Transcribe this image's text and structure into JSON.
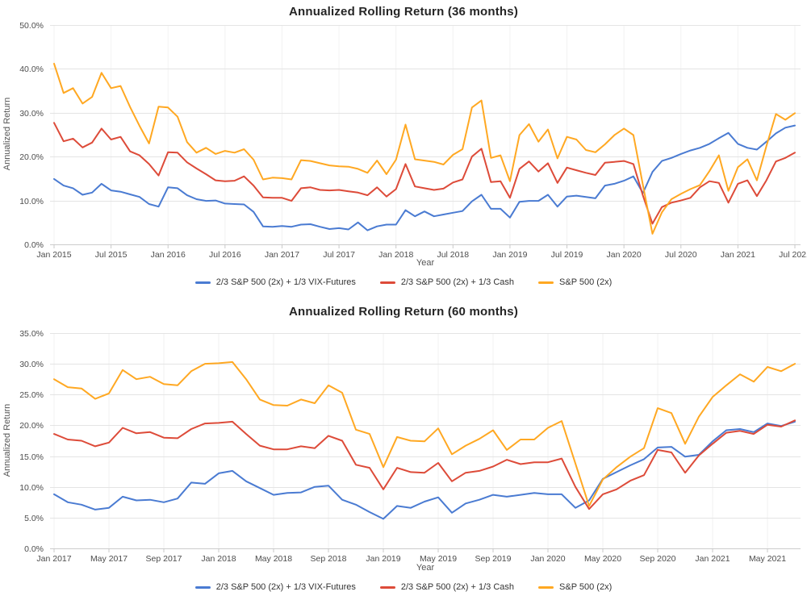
{
  "chart_data": [
    {
      "type": "line",
      "title": "Annualized Rolling Return (36 months)",
      "xlabel": "Year",
      "ylabel": "Annualized Return",
      "ylim": [
        0,
        50
      ],
      "y_step": 10,
      "grid": true,
      "legend_position": "bottom",
      "y_tick_labels": [
        "0.0%",
        "10.0%",
        "20.0%",
        "30.0%",
        "40.0%",
        "50.0%"
      ],
      "x_tick_labels": [
        "Jan 2015",
        "Jul 2015",
        "Jan 2016",
        "Jul 2016",
        "Jan 2017",
        "Jul 2017",
        "Jan 2018",
        "Jul 2018",
        "Jan 2019",
        "Jul 2019",
        "Jan 2020",
        "Jul 2020",
        "Jan 2021",
        "Jul 2021"
      ],
      "x_tick_positions": [
        0,
        6,
        12,
        18,
        24,
        30,
        36,
        42,
        48,
        54,
        60,
        66,
        72,
        78
      ],
      "x_start": "Jan 2015",
      "x_end": "Jul 2021",
      "n_points": 79,
      "series": [
        {
          "name": "2/3 S&P 500 (2x) + 1/3 VIX-Futures",
          "color": "#4a7bd2",
          "values": [
            14.9,
            13.4,
            12.8,
            11.3,
            11.8,
            13.8,
            12.3,
            12.0,
            11.4,
            10.8,
            9.2,
            8.6,
            13.0,
            12.8,
            11.2,
            10.3,
            9.9,
            10.0,
            9.3,
            9.2,
            9.1,
            7.4,
            4.1,
            4.0,
            4.2,
            4.0,
            4.5,
            4.6,
            4.0,
            3.5,
            3.7,
            3.4,
            5.0,
            3.2,
            4.1,
            4.5,
            4.5,
            7.8,
            6.4,
            7.5,
            6.4,
            6.8,
            7.2,
            7.6,
            9.8,
            11.3,
            8.1,
            8.1,
            6.1,
            9.7,
            9.9,
            9.9,
            11.3,
            8.6,
            10.9,
            11.1,
            10.8,
            10.5,
            13.4,
            13.8,
            14.5,
            15.5,
            11.7,
            16.5,
            19.0,
            19.7,
            20.6,
            21.4,
            22.0,
            22.9,
            24.2,
            25.4,
            22.9,
            22.0,
            21.6,
            23.4,
            25.3,
            26.6,
            27.1
          ]
        },
        {
          "name": "2/3 S&P 500 (2x) + 1/3 Cash",
          "color": "#dd4b39",
          "values": [
            27.7,
            23.5,
            24.1,
            22.1,
            23.2,
            26.4,
            23.9,
            24.5,
            21.2,
            20.3,
            18.3,
            15.7,
            21.0,
            20.9,
            18.7,
            17.3,
            16.0,
            14.6,
            14.4,
            14.5,
            15.5,
            13.4,
            10.7,
            10.6,
            10.6,
            9.9,
            12.8,
            13.0,
            12.4,
            12.3,
            12.4,
            12.1,
            11.8,
            11.2,
            13.0,
            10.9,
            12.6,
            18.3,
            13.2,
            12.8,
            12.4,
            12.7,
            14.1,
            14.8,
            20.0,
            21.8,
            14.2,
            14.4,
            10.6,
            17.2,
            18.9,
            16.6,
            18.5,
            14.0,
            17.5,
            16.9,
            16.3,
            15.8,
            18.6,
            18.8,
            19.0,
            18.3,
            11.1,
            4.7,
            8.5,
            9.5,
            10.0,
            10.6,
            13.0,
            14.4,
            14.0,
            9.5,
            13.8,
            14.6,
            11.0,
            14.6,
            18.9,
            19.7,
            20.9
          ]
        },
        {
          "name": "S&P 500 (2x)",
          "color": "#ffa822",
          "values": [
            41.2,
            34.5,
            35.6,
            32.1,
            33.6,
            39.1,
            35.6,
            36.1,
            31.3,
            27.0,
            23.0,
            31.4,
            31.2,
            29.1,
            23.3,
            20.9,
            22.0,
            20.6,
            21.3,
            20.9,
            21.7,
            19.3,
            14.8,
            15.2,
            15.1,
            14.8,
            19.2,
            19.0,
            18.5,
            18.0,
            17.8,
            17.7,
            17.2,
            16.3,
            19.1,
            16.0,
            19.3,
            27.3,
            19.4,
            19.1,
            18.8,
            18.2,
            20.4,
            21.7,
            31.2,
            32.8,
            19.7,
            20.3,
            14.4,
            24.9,
            27.4,
            23.4,
            26.2,
            19.6,
            24.5,
            23.9,
            21.5,
            21.0,
            22.8,
            24.9,
            26.4,
            24.9,
            13.5,
            2.4,
            7.3,
            10.3,
            11.5,
            12.6,
            13.5,
            16.7,
            20.3,
            12.2,
            17.6,
            19.4,
            14.6,
            22.4,
            29.7,
            28.4,
            29.9
          ]
        }
      ]
    },
    {
      "type": "line",
      "title": "Annualized Rolling Return (60 months)",
      "xlabel": "Year",
      "ylabel": "Annualized Return",
      "ylim": [
        0,
        35
      ],
      "y_step": 5,
      "grid": true,
      "legend_position": "bottom",
      "y_tick_labels": [
        "0.0%",
        "5.0%",
        "10.0%",
        "15.0%",
        "20.0%",
        "25.0%",
        "30.0%",
        "35.0%"
      ],
      "x_tick_labels": [
        "Jan 2017",
        "May 2017",
        "Sep 2017",
        "Jan 2018",
        "May 2018",
        "Sep 2018",
        "Jan 2019",
        "May 2019",
        "Sep 2019",
        "Jan 2020",
        "May 2020",
        "Sep 2020",
        "Jan 2021",
        "May 2021"
      ],
      "x_tick_positions": [
        0,
        4,
        8,
        12,
        16,
        20,
        24,
        28,
        32,
        36,
        40,
        44,
        48,
        52
      ],
      "x_start": "Jan 2017",
      "x_end": "Jul 2021",
      "n_points": 55,
      "series": [
        {
          "name": "2/3 S&P 500 (2x) + 1/3 VIX-Futures",
          "color": "#4a7bd2",
          "values": [
            8.8,
            7.5,
            7.1,
            6.3,
            6.6,
            8.4,
            7.8,
            7.9,
            7.5,
            8.1,
            10.7,
            10.5,
            12.2,
            12.6,
            10.9,
            9.8,
            8.7,
            9.0,
            9.1,
            10.0,
            10.2,
            7.9,
            7.1,
            5.9,
            4.8,
            6.9,
            6.6,
            7.6,
            8.3,
            5.8,
            7.3,
            7.9,
            8.7,
            8.4,
            8.7,
            9.0,
            8.8,
            8.8,
            6.6,
            7.8,
            11.3,
            12.4,
            13.5,
            14.5,
            16.4,
            16.5,
            14.9,
            15.2,
            17.4,
            19.2,
            19.4,
            18.9,
            20.3,
            19.9,
            20.6
          ]
        },
        {
          "name": "2/3 S&P 500 (2x) + 1/3 Cash",
          "color": "#dd4b39",
          "values": [
            18.6,
            17.7,
            17.5,
            16.6,
            17.2,
            19.6,
            18.7,
            18.9,
            18.0,
            17.9,
            19.4,
            20.3,
            20.4,
            20.6,
            18.6,
            16.7,
            16.1,
            16.1,
            16.6,
            16.3,
            18.3,
            17.5,
            13.6,
            13.1,
            9.6,
            13.1,
            12.4,
            12.3,
            13.9,
            10.9,
            12.3,
            12.6,
            13.3,
            14.4,
            13.7,
            14.0,
            14.0,
            14.6,
            10.0,
            6.4,
            8.8,
            9.6,
            11.0,
            11.9,
            16.0,
            15.6,
            12.3,
            15.1,
            17.0,
            18.8,
            19.1,
            18.6,
            20.1,
            19.8,
            20.8
          ]
        },
        {
          "name": "S&P 500 (2x)",
          "color": "#ffa822",
          "values": [
            27.5,
            26.2,
            26.0,
            24.3,
            25.2,
            29.0,
            27.5,
            27.9,
            26.7,
            26.5,
            28.8,
            30.0,
            30.1,
            30.3,
            27.5,
            24.2,
            23.3,
            23.2,
            24.2,
            23.6,
            26.5,
            25.3,
            19.3,
            18.6,
            13.2,
            18.1,
            17.5,
            17.4,
            19.5,
            15.3,
            16.7,
            17.8,
            19.2,
            16.0,
            17.7,
            17.7,
            19.6,
            20.7,
            13.8,
            6.9,
            11.2,
            13.2,
            14.9,
            16.3,
            22.8,
            22.0,
            17.0,
            21.4,
            24.6,
            26.5,
            28.3,
            27.1,
            29.5,
            28.8,
            30.0
          ]
        }
      ]
    }
  ]
}
